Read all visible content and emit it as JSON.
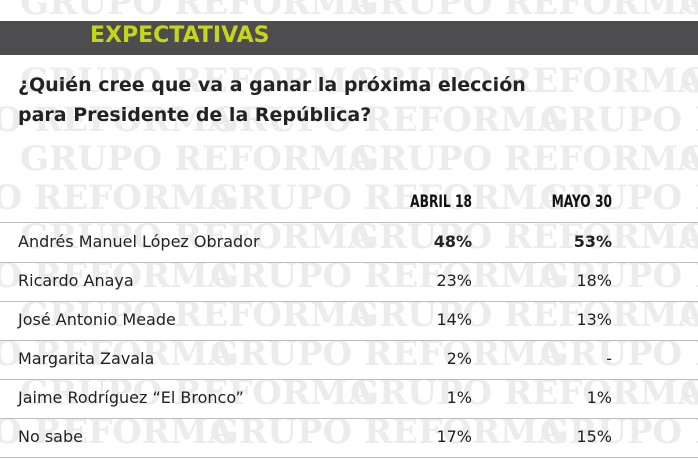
{
  "watermark": "GRUPO REFORMA",
  "header": {
    "title": "EXPECTATIVAS"
  },
  "question": [
    "¿Quién cree que va a ganar la próxima elección",
    "para Presidente de la República?"
  ],
  "table": {
    "columns": [
      "ABRIL 18",
      "MAYO 30"
    ],
    "rows": [
      [
        "Andrés Manuel López Obrador",
        "48%",
        "53%"
      ],
      [
        "Ricardo Anaya",
        "23%",
        "18%"
      ],
      [
        "José Antonio Meade",
        "14%",
        "13%"
      ],
      [
        "Margarita Zavala",
        "2%",
        "-"
      ],
      [
        "Jaime Rodríguez “El Bronco”",
        "1%",
        "1%"
      ],
      [
        "No sabe",
        "17%",
        "15%"
      ]
    ]
  }
}
